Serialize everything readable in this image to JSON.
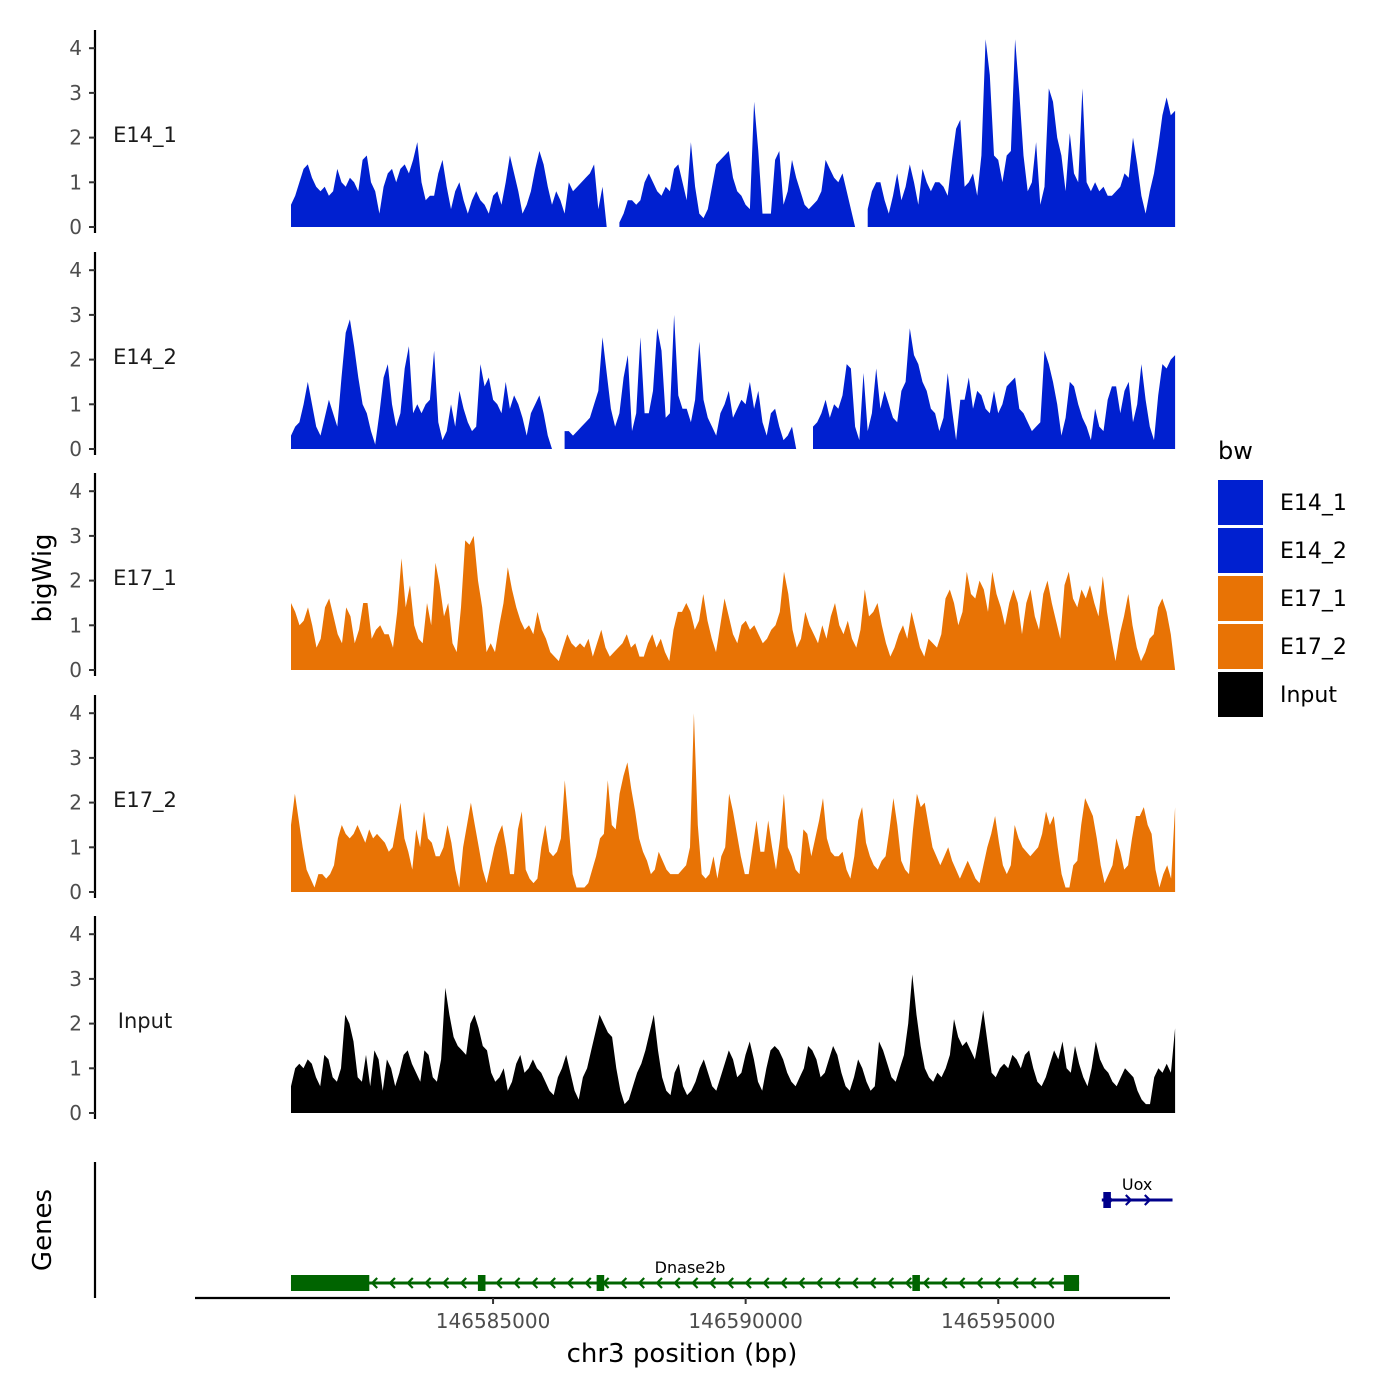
{
  "chart_data": {
    "type": "area",
    "x_axis_title": "chr3 position (bp)",
    "y_axis_title": "bigWig",
    "gene_axis_title": "Genes",
    "x_range": [
      146581000,
      146598500
    ],
    "xlim": [
      146579100,
      146598400
    ],
    "x_ticks": [
      146585000,
      146590000,
      146595000
    ],
    "x_tick_labels": [
      "146585000",
      "146590000",
      "146595000"
    ],
    "y_range": [
      0,
      4.3
    ],
    "y_ticks": [
      0,
      1,
      2,
      3,
      4
    ],
    "y_tick_labels": [
      "0",
      "1",
      "2",
      "3",
      "4"
    ],
    "legend": {
      "title": "bw",
      "items": [
        {
          "label": "E14_1",
          "color": "#0020D0"
        },
        {
          "label": "E14_2",
          "color": "#0020D0"
        },
        {
          "label": "E17_1",
          "color": "#E87305"
        },
        {
          "label": "E17_2",
          "color": "#E87305"
        },
        {
          "label": "Input",
          "color": "#000000"
        }
      ]
    },
    "series": [
      {
        "name": "E14_1",
        "color": "#0020D0",
        "values": [
          0.5,
          0.7,
          1.0,
          1.3,
          1.4,
          1.1,
          0.9,
          0.8,
          0.9,
          0.7,
          0.8,
          1.3,
          1.0,
          0.9,
          1.1,
          1.0,
          0.8,
          1.5,
          1.6,
          1.0,
          0.8,
          0.3,
          0.9,
          1.2,
          1.3,
          1.0,
          1.3,
          1.4,
          1.2,
          1.5,
          1.9,
          1.0,
          0.6,
          0.7,
          0.7,
          1.2,
          1.5,
          0.9,
          0.4,
          0.8,
          1.0,
          0.6,
          0.3,
          0.6,
          0.8,
          0.6,
          0.5,
          0.3,
          0.7,
          0.8,
          0.5,
          1.0,
          1.6,
          1.2,
          0.8,
          0.3,
          0.5,
          0.8,
          1.3,
          1.7,
          1.4,
          0.9,
          0.5,
          0.8,
          0.6,
          0.3,
          1.0,
          0.8,
          0.9,
          1.0,
          1.1,
          1.2,
          1.4,
          0.4,
          0.9,
          0.0,
          null,
          null,
          0.1,
          0.3,
          0.6,
          0.6,
          0.5,
          0.6,
          1.0,
          1.2,
          1.0,
          0.8,
          0.7,
          0.9,
          0.8,
          1.3,
          1.4,
          1.0,
          0.6,
          1.9,
          0.9,
          0.3,
          0.2,
          0.4,
          0.9,
          1.4,
          1.5,
          1.6,
          1.7,
          1.1,
          0.8,
          0.7,
          0.5,
          0.4,
          2.8,
          1.7,
          0.3,
          0.3,
          0.3,
          1.5,
          1.7,
          0.5,
          0.8,
          1.5,
          1.1,
          0.8,
          0.5,
          0.4,
          0.5,
          0.6,
          0.8,
          1.5,
          1.3,
          1.1,
          1.0,
          1.2,
          0.8,
          0.4,
          0.0,
          null,
          null,
          0.4,
          0.8,
          1.0,
          1.0,
          0.6,
          0.3,
          0.7,
          1.2,
          0.6,
          0.9,
          1.4,
          1.0,
          0.5,
          1.3,
          1.0,
          0.8,
          1.0,
          1.0,
          0.9,
          0.7,
          1.5,
          2.2,
          2.4,
          0.9,
          1.0,
          1.2,
          0.7,
          1.6,
          4.2,
          3.4,
          1.6,
          1.5,
          1.0,
          1.6,
          1.7,
          4.2,
          3.0,
          1.6,
          0.8,
          1.0,
          1.9,
          0.5,
          0.9,
          3.1,
          2.8,
          2.0,
          1.6,
          0.8,
          2.1,
          1.2,
          1.0,
          3.1,
          1.0,
          0.8,
          1.0,
          0.8,
          0.9,
          0.7,
          0.7,
          0.8,
          0.9,
          1.2,
          1.1,
          2.0,
          1.4,
          0.7,
          0.3,
          0.8,
          1.2,
          1.8,
          2.5,
          2.9,
          2.5,
          2.6
        ]
      },
      {
        "name": "E14_2",
        "color": "#0020D0",
        "values": [
          0.3,
          0.5,
          0.6,
          1.0,
          1.5,
          1.0,
          0.5,
          0.3,
          0.7,
          1.1,
          0.8,
          0.5,
          1.6,
          2.6,
          2.9,
          2.3,
          1.6,
          1.0,
          0.8,
          0.4,
          0.1,
          0.8,
          1.6,
          1.9,
          1.0,
          0.5,
          0.8,
          1.8,
          2.3,
          0.8,
          1.0,
          0.8,
          1.0,
          1.1,
          2.2,
          0.6,
          0.2,
          0.4,
          1.0,
          0.5,
          1.3,
          0.9,
          0.6,
          0.4,
          0.5,
          1.9,
          1.4,
          1.6,
          1.1,
          1.0,
          0.8,
          1.5,
          0.9,
          1.2,
          1.0,
          0.7,
          0.3,
          0.8,
          1.0,
          1.2,
          0.8,
          0.3,
          0.0,
          null,
          null,
          0.4,
          0.4,
          0.3,
          0.4,
          0.5,
          0.6,
          0.7,
          1.0,
          1.3,
          2.5,
          1.7,
          0.9,
          0.5,
          0.8,
          1.6,
          2.1,
          0.4,
          0.8,
          2.5,
          0.8,
          0.8,
          1.3,
          2.7,
          2.2,
          0.7,
          0.8,
          3.0,
          1.2,
          0.9,
          0.9,
          0.6,
          1.1,
          2.4,
          1.1,
          0.7,
          0.5,
          0.3,
          0.8,
          1.0,
          1.3,
          0.7,
          0.9,
          1.1,
          1.0,
          1.5,
          0.9,
          1.3,
          0.6,
          0.3,
          0.8,
          0.9,
          0.5,
          0.2,
          0.3,
          0.5,
          0.0,
          null,
          null,
          null,
          0.5,
          0.6,
          0.8,
          1.1,
          0.7,
          1.0,
          0.9,
          1.2,
          1.9,
          1.8,
          0.5,
          0.2,
          1.7,
          0.4,
          0.8,
          1.8,
          0.9,
          1.3,
          1.0,
          0.7,
          0.6,
          1.3,
          1.5,
          2.7,
          2.1,
          1.9,
          1.5,
          1.3,
          0.9,
          0.8,
          0.4,
          0.7,
          1.7,
          0.9,
          0.2,
          1.1,
          1.1,
          1.6,
          0.9,
          1.3,
          1.2,
          0.9,
          0.8,
          1.3,
          0.8,
          1.0,
          1.4,
          1.5,
          1.6,
          0.9,
          0.8,
          0.6,
          0.4,
          0.5,
          0.6,
          2.2,
          1.9,
          1.5,
          1.0,
          0.3,
          0.7,
          1.5,
          1.4,
          1.0,
          0.7,
          0.5,
          0.2,
          0.9,
          0.5,
          0.4,
          1.1,
          1.4,
          1.4,
          0.8,
          1.3,
          1.5,
          0.6,
          1.0,
          1.9,
          1.1,
          0.5,
          0.2,
          1.2,
          1.9,
          1.8,
          2.0,
          2.1
        ]
      },
      {
        "name": "E17_1",
        "color": "#E87305",
        "values": [
          1.5,
          1.3,
          1.0,
          1.1,
          1.4,
          1.0,
          0.5,
          0.7,
          1.4,
          1.6,
          1.2,
          0.8,
          0.6,
          1.4,
          1.2,
          0.6,
          0.9,
          1.5,
          1.5,
          0.7,
          0.9,
          1.0,
          0.8,
          0.8,
          0.5,
          1.3,
          2.5,
          1.4,
          1.9,
          1.0,
          0.7,
          0.6,
          1.5,
          1.0,
          2.4,
          1.9,
          1.2,
          1.5,
          0.6,
          0.4,
          1.4,
          2.9,
          2.8,
          3.0,
          2.0,
          1.4,
          0.4,
          0.6,
          0.4,
          1.0,
          1.5,
          2.3,
          1.8,
          1.4,
          1.1,
          0.9,
          1.0,
          0.8,
          1.3,
          0.9,
          0.7,
          0.4,
          0.3,
          0.2,
          0.5,
          0.8,
          0.6,
          0.5,
          0.6,
          0.5,
          0.7,
          0.3,
          0.6,
          0.9,
          0.5,
          0.3,
          0.4,
          0.5,
          0.6,
          0.8,
          0.5,
          0.6,
          0.3,
          0.3,
          0.6,
          0.8,
          0.5,
          0.7,
          0.4,
          0.2,
          0.9,
          1.3,
          1.3,
          1.5,
          1.3,
          0.9,
          1.1,
          1.7,
          1.1,
          0.7,
          0.4,
          1.0,
          1.6,
          1.2,
          0.8,
          0.6,
          1.0,
          1.1,
          0.9,
          1.0,
          0.8,
          0.6,
          0.7,
          0.9,
          1.0,
          1.3,
          2.2,
          1.7,
          0.9,
          0.5,
          0.7,
          1.3,
          1.0,
          0.8,
          0.6,
          1.0,
          0.7,
          1.2,
          1.5,
          1.0,
          0.8,
          1.1,
          0.7,
          0.5,
          0.9,
          1.8,
          1.2,
          1.3,
          1.5,
          1.0,
          0.6,
          0.3,
          0.5,
          0.8,
          1.0,
          0.7,
          1.3,
          0.9,
          0.5,
          0.3,
          0.7,
          0.6,
          0.5,
          0.8,
          1.6,
          1.8,
          1.5,
          1.0,
          1.3,
          2.2,
          1.7,
          1.6,
          2.0,
          1.8,
          1.3,
          2.2,
          1.7,
          1.4,
          1.0,
          1.5,
          1.8,
          1.5,
          0.8,
          1.5,
          1.8,
          1.2,
          0.9,
          1.7,
          2.0,
          1.5,
          1.1,
          0.7,
          1.9,
          2.2,
          1.6,
          1.4,
          1.8,
          1.6,
          1.9,
          1.5,
          1.2,
          2.1,
          1.3,
          0.7,
          0.2,
          0.8,
          1.2,
          1.7,
          1.0,
          0.5,
          0.2,
          0.4,
          0.7,
          0.8,
          1.4,
          1.6,
          1.3,
          0.8,
          0.0
        ]
      },
      {
        "name": "E17_2",
        "color": "#E87305",
        "values": [
          1.5,
          2.2,
          1.6,
          1.0,
          0.5,
          0.3,
          0.1,
          0.4,
          0.4,
          0.3,
          0.4,
          0.6,
          1.2,
          1.5,
          1.3,
          1.2,
          1.3,
          1.5,
          1.3,
          1.1,
          1.4,
          1.2,
          1.3,
          1.2,
          1.1,
          0.9,
          1.0,
          1.5,
          2.0,
          1.2,
          0.9,
          0.5,
          1.4,
          1.0,
          1.8,
          1.2,
          1.1,
          0.8,
          0.8,
          1.0,
          1.5,
          1.1,
          0.5,
          0.1,
          1.0,
          1.5,
          2.0,
          1.5,
          1.0,
          0.5,
          0.2,
          0.6,
          1.0,
          1.3,
          1.5,
          1.0,
          0.4,
          0.4,
          1.4,
          1.8,
          0.5,
          0.3,
          0.2,
          0.3,
          1.0,
          1.5,
          0.9,
          0.8,
          0.9,
          1.2,
          2.5,
          1.5,
          0.4,
          0.1,
          0.1,
          0.1,
          0.2,
          0.5,
          0.8,
          1.2,
          1.3,
          2.5,
          1.5,
          1.4,
          2.2,
          2.6,
          2.9,
          2.3,
          1.8,
          1.2,
          0.9,
          0.7,
          0.4,
          0.5,
          0.9,
          0.7,
          0.5,
          0.4,
          0.4,
          0.4,
          0.5,
          0.6,
          1.0,
          4.0,
          1.5,
          0.4,
          0.3,
          0.4,
          0.8,
          0.3,
          0.8,
          1.0,
          2.2,
          1.8,
          1.3,
          0.8,
          0.4,
          0.4,
          1.0,
          1.6,
          0.9,
          0.9,
          1.6,
          1.0,
          0.5,
          1.2,
          2.2,
          1.0,
          0.8,
          0.5,
          0.4,
          1.4,
          1.3,
          0.8,
          1.2,
          1.6,
          2.1,
          1.2,
          0.9,
          0.8,
          0.8,
          0.9,
          0.5,
          0.3,
          0.8,
          1.6,
          1.9,
          1.1,
          0.8,
          0.6,
          0.5,
          0.7,
          0.8,
          1.4,
          2.1,
          1.5,
          0.7,
          0.5,
          0.4,
          1.4,
          2.2,
          1.9,
          2.0,
          1.5,
          1.0,
          0.8,
          0.6,
          0.8,
          1.0,
          0.7,
          0.5,
          0.3,
          0.5,
          0.7,
          0.5,
          0.3,
          0.2,
          0.6,
          1.0,
          1.3,
          1.7,
          1.1,
          0.6,
          0.4,
          0.6,
          1.5,
          1.2,
          1.0,
          0.9,
          0.8,
          0.9,
          1.0,
          1.3,
          1.8,
          1.5,
          1.7,
          1.0,
          0.4,
          0.1,
          0.1,
          0.6,
          0.7,
          1.5,
          2.1,
          1.9,
          1.7,
          1.2,
          0.6,
          0.2,
          0.4,
          0.6,
          1.2,
          0.9,
          0.5,
          0.6,
          1.2,
          1.7,
          1.7,
          1.9,
          1.5,
          1.3,
          0.5,
          0.1,
          0.4,
          0.6,
          0.3,
          1.9
        ]
      },
      {
        "name": "Input",
        "color": "#000000",
        "values": [
          0.6,
          1.0,
          1.1,
          1.0,
          1.2,
          1.1,
          0.8,
          0.6,
          1.3,
          1.2,
          0.8,
          0.7,
          1.0,
          2.2,
          2.0,
          1.6,
          0.8,
          0.7,
          1.3,
          0.6,
          1.4,
          1.2,
          0.5,
          1.2,
          1.0,
          0.6,
          0.9,
          1.3,
          1.4,
          1.1,
          0.9,
          0.7,
          1.4,
          1.3,
          0.8,
          0.7,
          1.2,
          2.8,
          2.2,
          1.7,
          1.5,
          1.4,
          1.3,
          2.0,
          2.2,
          1.9,
          1.5,
          1.4,
          0.9,
          0.7,
          0.8,
          1.0,
          0.5,
          0.7,
          1.1,
          1.3,
          0.9,
          1.0,
          1.2,
          1.0,
          0.9,
          0.7,
          0.5,
          0.4,
          0.8,
          1.0,
          1.3,
          0.9,
          0.5,
          0.3,
          0.8,
          1.0,
          1.4,
          1.8,
          2.2,
          2.0,
          1.8,
          1.7,
          1.0,
          0.5,
          0.2,
          0.3,
          0.6,
          0.9,
          1.1,
          1.4,
          1.8,
          2.2,
          1.4,
          0.8,
          0.5,
          0.4,
          0.9,
          1.1,
          0.6,
          0.4,
          0.5,
          0.7,
          1.0,
          1.2,
          0.9,
          0.6,
          0.5,
          0.8,
          1.1,
          1.4,
          1.2,
          0.8,
          0.9,
          1.3,
          1.6,
          1.2,
          0.7,
          0.5,
          1.0,
          1.4,
          1.5,
          1.4,
          1.2,
          0.9,
          0.7,
          0.6,
          0.8,
          1.0,
          1.5,
          1.4,
          1.2,
          0.8,
          0.9,
          1.2,
          1.5,
          1.3,
          0.9,
          0.6,
          0.5,
          0.8,
          1.2,
          1.0,
          0.7,
          0.5,
          0.6,
          1.6,
          1.4,
          1.1,
          0.8,
          0.7,
          1.0,
          1.3,
          2.0,
          3.1,
          2.2,
          1.5,
          1.0,
          0.8,
          0.7,
          0.9,
          0.8,
          1.0,
          1.3,
          2.1,
          1.7,
          1.5,
          1.6,
          1.4,
          1.2,
          1.7,
          2.3,
          1.6,
          0.9,
          0.8,
          1.0,
          1.1,
          1.0,
          1.3,
          1.2,
          1.0,
          1.3,
          1.4,
          1.0,
          0.7,
          0.6,
          0.8,
          1.1,
          1.4,
          1.2,
          1.6,
          1.0,
          0.9,
          1.5,
          1.1,
          0.8,
          0.6,
          1.0,
          1.6,
          1.2,
          1.0,
          0.9,
          0.7,
          0.6,
          0.8,
          1.0,
          0.9,
          0.8,
          0.5,
          0.3,
          0.2,
          0.2,
          0.8,
          1.0,
          0.9,
          1.1,
          0.9,
          1.9
        ]
      }
    ],
    "genes": [
      {
        "name": "Dnase2b",
        "start": 146581000,
        "end": 146596600,
        "strand": "-",
        "color": "#006400",
        "exons": [
          [
            146581000,
            146582550
          ],
          [
            146584700,
            146584850
          ],
          [
            146587050,
            146587200
          ],
          [
            146593300,
            146593450
          ],
          [
            146596300,
            146596600
          ]
        ]
      },
      {
        "name": "Uox",
        "start": 146597050,
        "end": 146598450,
        "strand": "+",
        "color": "#00008B",
        "exons": [
          [
            146597080,
            146597230
          ]
        ]
      }
    ]
  }
}
